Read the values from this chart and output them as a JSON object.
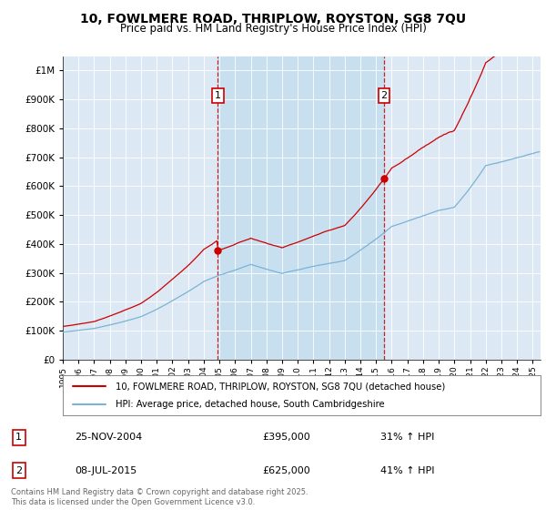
{
  "title_line1": "10, FOWLMERE ROAD, THRIPLOW, ROYSTON, SG8 7QU",
  "title_line2": "Price paid vs. HM Land Registry's House Price Index (HPI)",
  "background_color": "#dce9f5",
  "highlight_color": "#c8dff0",
  "outer_bg_color": "#ffffff",
  "red_color": "#cc0000",
  "blue_color": "#7ab3d4",
  "marker1_x": 2004.9,
  "marker1_date": "25-NOV-2004",
  "marker1_price": "£395,000",
  "marker1_hpi": "31% ↑ HPI",
  "marker2_x": 2015.5,
  "marker2_date": "08-JUL-2015",
  "marker2_price": "£625,000",
  "marker2_hpi": "41% ↑ HPI",
  "legend_line1": "10, FOWLMERE ROAD, THRIPLOW, ROYSTON, SG8 7QU (detached house)",
  "legend_line2": "HPI: Average price, detached house, South Cambridgeshire",
  "footer": "Contains HM Land Registry data © Crown copyright and database right 2025.\nThis data is licensed under the Open Government Licence v3.0.",
  "xmin": 1995,
  "xmax": 2025.5,
  "ymin": 0,
  "ymax": 1050000
}
